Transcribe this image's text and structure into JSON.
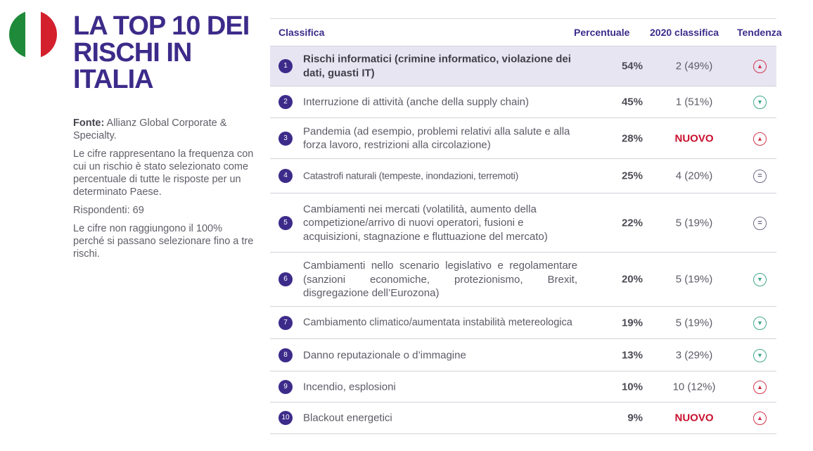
{
  "flag_colors": [
    "#1f8a3a",
    "#ffffff",
    "#d3202c"
  ],
  "title": [
    "LA TOP 10 DEI",
    "RISCHI IN",
    "ITALIA"
  ],
  "side": {
    "source_label": "Fonte:",
    "source_text": "Allianz Global Corporate & Specialty.",
    "desc": "Le cifre rappresentano la frequenza con cui un rischio è stato selezionato come percentuale di tutte le risposte per un determinato Paese.",
    "respondents": "Rispondenti: 69",
    "note": "Le cifre non raggiungono il 100% perché si passano selezionare fino a tre rischi."
  },
  "table": {
    "headers": {
      "rank": "Classifica",
      "percent": "Percentuale",
      "prev": "2020 classifica",
      "trend": "Tendenza"
    },
    "rows": [
      {
        "rank": "1",
        "label": "Rischi informatici (crimine informatico, violazione dei dati, guasti IT)",
        "percent": "54%",
        "prev": "2 (49%)",
        "trend": "up",
        "trend_glyph": "▲"
      },
      {
        "rank": "2",
        "label": "Interruzione di attività (anche della supply chain)",
        "percent": "45%",
        "prev": "1 (51%)",
        "trend": "down",
        "trend_glyph": "▼"
      },
      {
        "rank": "3",
        "label": "Pandemia (ad esempio, problemi relativi alla salute e alla forza lavoro, restrizioni alla circolazione)",
        "percent": "28%",
        "prev": "NUOVO",
        "trend": "up",
        "trend_glyph": "▲"
      },
      {
        "rank": "4",
        "label": "Catastrofi naturali (tempeste, inondazioni, terremoti)",
        "percent": "25%",
        "prev": "4 (20%)",
        "trend": "eq",
        "trend_glyph": "="
      },
      {
        "rank": "5",
        "label": "Cambiamenti nei mercati (volatilità, aumento della competizione/arrivo di nuovi operatori, fusioni e acquisizioni, stagnazione e fluttuazione del mercato)",
        "percent": "22%",
        "prev": "5 (19%)",
        "trend": "eq",
        "trend_glyph": "="
      },
      {
        "rank": "6",
        "label": "Cambiamenti nello scenario legislativo e regolamentare (sanzioni economiche, protezionismo, Brexit, disgregazione dell’Eurozona)",
        "percent": "20%",
        "prev": "5 (19%)",
        "trend": "down",
        "trend_glyph": "▼"
      },
      {
        "rank": "7",
        "label": "Cambiamento climatico/aumentata instabilità metereologica",
        "percent": "19%",
        "prev": "5 (19%)",
        "trend": "down",
        "trend_glyph": "▼"
      },
      {
        "rank": "8",
        "label": "Danno reputazionale o d’immagine",
        "percent": "13%",
        "prev": "3 (29%)",
        "trend": "down",
        "trend_glyph": "▼"
      },
      {
        "rank": "9",
        "label": "Incendio, esplosioni",
        "percent": "10%",
        "prev": "10 (12%)",
        "trend": "up",
        "trend_glyph": "▲"
      },
      {
        "rank": "10",
        "label": "Blackout energetici",
        "percent": "9%",
        "prev": "NUOVO",
        "trend": "up",
        "trend_glyph": "▲"
      }
    ]
  }
}
